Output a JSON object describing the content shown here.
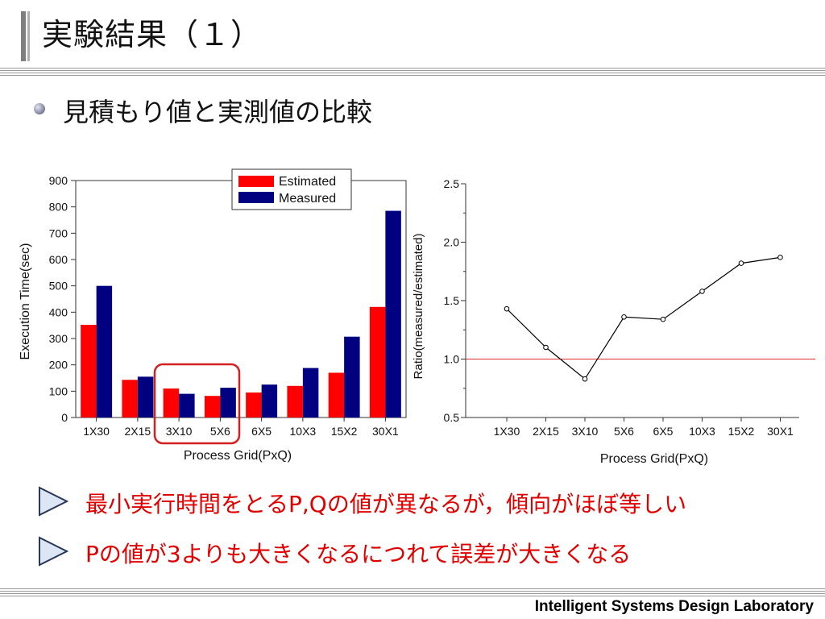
{
  "slide": {
    "title": "実験結果（１）",
    "bullet": "見積もり値と実測値の比較",
    "notes": [
      "最小実行時間をとるP,Qの値が異なるが，傾向がほぼ等しい",
      "Pの値が3よりも大きくなるにつれて誤差が大きくなる"
    ],
    "footer": "Intelligent Systems Design Laboratory"
  },
  "colors": {
    "estimated": "#ff0000",
    "measured": "#000080",
    "ratio_line": "#000000",
    "reference_line": "#e03030",
    "highlight_box": "#d42020",
    "note_text": "#e00000"
  },
  "chart_data": [
    {
      "type": "bar",
      "categories": [
        "1X30",
        "2X15",
        "3X10",
        "5X6",
        "6X5",
        "10X3",
        "15X2",
        "30X1"
      ],
      "series": [
        {
          "name": "Estimated",
          "values": [
            352,
            143,
            110,
            82,
            95,
            120,
            170,
            420
          ]
        },
        {
          "name": "Measured",
          "values": [
            500,
            155,
            90,
            113,
            125,
            188,
            307,
            785
          ]
        }
      ],
      "xlabel": "Process Grid(PxQ)",
      "ylabel": "Execution Time(sec)",
      "ylim": [
        0,
        900
      ],
      "yticks": [
        0,
        100,
        200,
        300,
        400,
        500,
        600,
        700,
        800,
        900
      ],
      "legend": "top-right",
      "highlight_categories": [
        "3X10",
        "5X6"
      ]
    },
    {
      "type": "line",
      "categories": [
        "1X30",
        "2X15",
        "3X10",
        "5X6",
        "6X5",
        "10X3",
        "15X2",
        "30X1"
      ],
      "values": [
        1.43,
        1.1,
        0.83,
        1.36,
        1.34,
        1.58,
        1.82,
        1.87
      ],
      "xlabel": "Process Grid(PxQ)",
      "ylabel": "Ratio(measured/estimated)",
      "ylim": [
        0.5,
        2.5
      ],
      "yticks": [
        "0.5",
        "1.0",
        "1.5",
        "2.0",
        "2.5"
      ],
      "reference_line": 1.0
    }
  ]
}
